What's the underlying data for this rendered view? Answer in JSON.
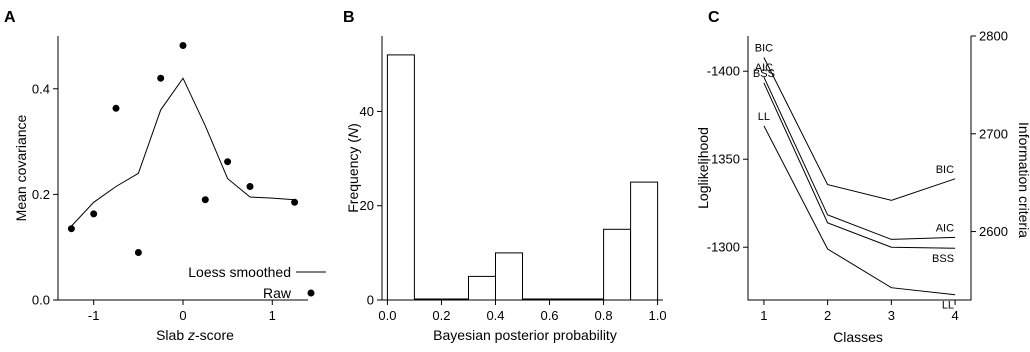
{
  "chart_data": [
    {
      "type": "scatter",
      "panel_label": "A",
      "xlabel": "Slab z-score",
      "xlabel_parts": [
        "Slab ",
        "z",
        "-score"
      ],
      "ylabel": "Mean covariance",
      "xlim": [
        -1.4,
        1.4
      ],
      "ylim": [
        0.0,
        0.5
      ],
      "xticks": [
        -1,
        0,
        1
      ],
      "xtick_labels": [
        "-1",
        "0",
        "1"
      ],
      "yticks": [
        0.0,
        0.2,
        0.4
      ],
      "ytick_labels": [
        "0.0",
        "0.2",
        "0.4"
      ],
      "legend_position": "bottom-right",
      "series": [
        {
          "name": "Loess smoothed",
          "kind": "line",
          "x": [
            -1.25,
            -1.0,
            -0.75,
            -0.5,
            -0.25,
            0.0,
            0.25,
            0.5,
            0.75,
            1.0,
            1.25
          ],
          "y": [
            0.14,
            0.185,
            0.215,
            0.24,
            0.36,
            0.42,
            0.33,
            0.23,
            0.195,
            0.193,
            0.19
          ]
        },
        {
          "name": "Raw",
          "kind": "points",
          "x": [
            -1.25,
            -1.0,
            -0.75,
            -0.5,
            -0.25,
            0.0,
            0.25,
            0.5,
            0.75,
            1.25
          ],
          "y": [
            0.135,
            0.163,
            0.363,
            0.09,
            0.42,
            0.482,
            0.19,
            0.262,
            0.215,
            0.185
          ]
        }
      ]
    },
    {
      "type": "bar",
      "subtype": "histogram",
      "panel_label": "B",
      "xlabel": "Bayesian posterior probability",
      "ylabel": "Frequency (N)",
      "ylabel_parts": [
        "Frequency (",
        "N",
        ")"
      ],
      "xlim": [
        -0.02,
        1.02
      ],
      "ylim": [
        0,
        56
      ],
      "xticks": [
        0.0,
        0.2,
        0.4,
        0.6,
        0.8,
        1.0
      ],
      "xtick_labels": [
        "0.0",
        "0.2",
        "0.4",
        "0.6",
        "0.8",
        "1.0"
      ],
      "yticks": [
        0,
        20,
        40
      ],
      "ytick_labels": [
        "0",
        "20",
        "40"
      ],
      "bins": [
        {
          "start": 0.0,
          "end": 0.1,
          "count": 52
        },
        {
          "start": 0.1,
          "end": 0.2,
          "count": 0
        },
        {
          "start": 0.2,
          "end": 0.3,
          "count": 0
        },
        {
          "start": 0.3,
          "end": 0.4,
          "count": 5
        },
        {
          "start": 0.4,
          "end": 0.5,
          "count": 10
        },
        {
          "start": 0.5,
          "end": 0.6,
          "count": 0
        },
        {
          "start": 0.6,
          "end": 0.7,
          "count": 0
        },
        {
          "start": 0.7,
          "end": 0.8,
          "count": 0
        },
        {
          "start": 0.8,
          "end": 0.9,
          "count": 15
        },
        {
          "start": 0.9,
          "end": 1.0,
          "count": 25
        }
      ]
    },
    {
      "type": "line",
      "panel_label": "C",
      "xlabel": "Classes",
      "ylabel_left": "Loglikelihood",
      "ylabel_right": "Information criteria",
      "x": [
        1,
        2,
        3,
        4
      ],
      "xlim": [
        0.75,
        4.25
      ],
      "xticks": [
        1,
        2,
        3,
        4
      ],
      "xtick_labels": [
        "1",
        "2",
        "3",
        "4"
      ],
      "ylim_left": [
        -1270,
        -1420
      ],
      "yticks_left": [
        -1300,
        -1350,
        -1400
      ],
      "ytick_labels_left": [
        "-1300",
        "-1350",
        "-1400"
      ],
      "ylim_right": [
        2530,
        2800
      ],
      "yticks_right": [
        2600,
        2700,
        2800
      ],
      "ytick_labels_right": [
        "2600",
        "2700",
        "2800"
      ],
      "series": [
        {
          "name": "BIC",
          "axis": "right",
          "values": [
            2778,
            2648,
            2632,
            2654
          ]
        },
        {
          "name": "AIC",
          "axis": "right",
          "values": [
            2758,
            2617,
            2592,
            2594
          ]
        },
        {
          "name": "BSS",
          "axis": "right",
          "values": [
            2752,
            2609,
            2584,
            2583
          ]
        },
        {
          "name": "LL",
          "axis": "left",
          "values": [
            -1369,
            -1299,
            -1277,
            -1273
          ]
        }
      ]
    }
  ]
}
